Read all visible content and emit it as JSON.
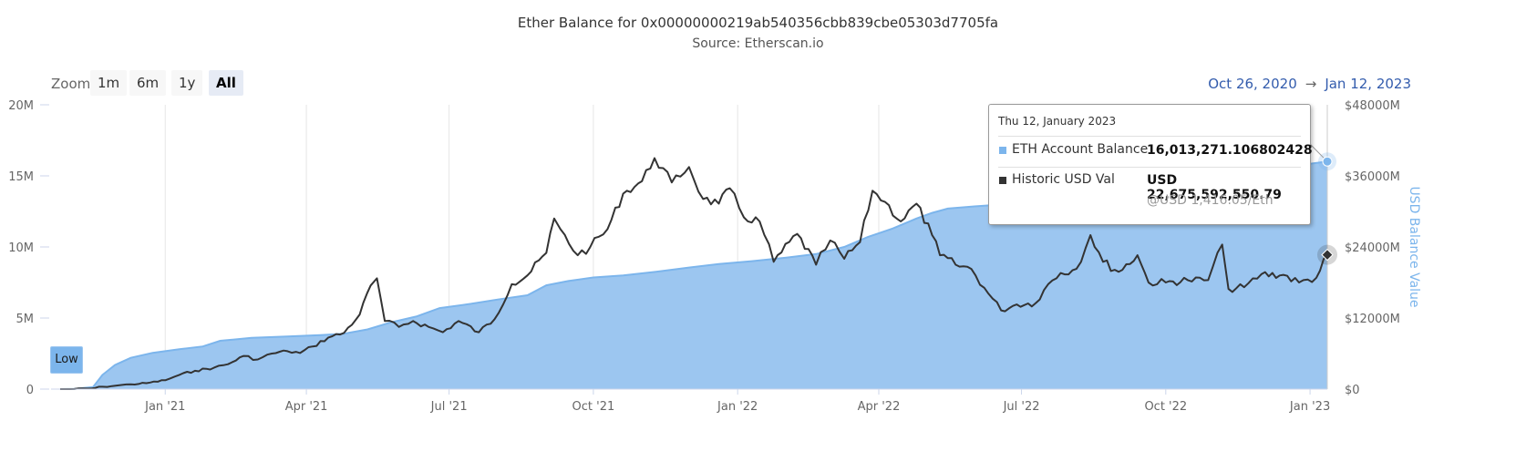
{
  "header": {
    "title": "Ether Balance for 0x00000000219ab540356cbb839cbe05303d7705fa",
    "subtitle": "Source: Etherscan.io"
  },
  "zoom": {
    "label": "Zoom",
    "buttons": [
      "1m",
      "6m",
      "1y",
      "All"
    ],
    "active": "All"
  },
  "range": {
    "from": "Oct 26, 2020",
    "arrow": "→",
    "to": "Jan 12, 2023"
  },
  "low_button": "Low",
  "tooltip": {
    "date": "Thu 12, January 2023",
    "balance_label": "ETH Account Balance",
    "balance_value": "16,013,271.106802428",
    "usd_label": "Historic USD Val",
    "usd_value": "USD 22,675,592,550.79",
    "usd_rate": "@USD 1,416.05/Eth"
  },
  "colors": {
    "balance": "#7cb5ec",
    "balance_fill": "#9cc6f0",
    "usd": "#333333"
  },
  "chart_data": {
    "type": "area",
    "title": "Ether Balance for 0x00000000219ab540356cbb839cbe05303d7705fa",
    "subtitle": "Source: Etherscan.io",
    "ylabel_right": "USD Balance Value",
    "x_tick_labels": [
      "Jan '21",
      "Apr '21",
      "Jul '21",
      "Oct '21",
      "Jan '22",
      "Apr '22",
      "Jul '22",
      "Oct '22",
      "Jan '23"
    ],
    "x_tick_dates": [
      "2021-01-01",
      "2021-04-01",
      "2021-07-01",
      "2021-10-01",
      "2022-01-01",
      "2022-04-01",
      "2022-07-01",
      "2022-10-01",
      "2023-01-01"
    ],
    "xlim": [
      "2020-10-26",
      "2023-01-12"
    ],
    "y_left_ticks": [
      "0",
      "5M",
      "10M",
      "15M",
      "20M"
    ],
    "y_left_values": [
      0,
      5000000,
      10000000,
      15000000,
      20000000
    ],
    "ylim_left": [
      0,
      20000000
    ],
    "y_right_ticks": [
      "$0",
      "$12000M",
      "$24000M",
      "$36000M",
      "$48000M"
    ],
    "y_right_values": [
      0,
      12000,
      24000,
      36000,
      48000
    ],
    "ylim_right": [
      0,
      48000
    ],
    "series": [
      {
        "name": "ETH Account Balance",
        "axis": "left",
        "type": "area",
        "points": [
          [
            "2020-10-26",
            0
          ],
          [
            "2020-11-04",
            20000
          ],
          [
            "2020-11-16",
            150000
          ],
          [
            "2020-11-22",
            1000000
          ],
          [
            "2020-11-30",
            1700000
          ],
          [
            "2020-12-10",
            2200000
          ],
          [
            "2020-12-24",
            2550000
          ],
          [
            "2021-01-10",
            2800000
          ],
          [
            "2021-01-25",
            3000000
          ],
          [
            "2021-02-05",
            3400000
          ],
          [
            "2021-02-25",
            3600000
          ],
          [
            "2021-03-20",
            3700000
          ],
          [
            "2021-04-10",
            3800000
          ],
          [
            "2021-04-25",
            3900000
          ],
          [
            "2021-05-10",
            4200000
          ],
          [
            "2021-05-25",
            4700000
          ],
          [
            "2021-06-10",
            5100000
          ],
          [
            "2021-06-25",
            5700000
          ],
          [
            "2021-07-15",
            6000000
          ],
          [
            "2021-08-01",
            6300000
          ],
          [
            "2021-08-20",
            6600000
          ],
          [
            "2021-09-01",
            7300000
          ],
          [
            "2021-09-15",
            7600000
          ],
          [
            "2021-10-01",
            7850000
          ],
          [
            "2021-10-20",
            8000000
          ],
          [
            "2021-11-10",
            8250000
          ],
          [
            "2021-12-01",
            8550000
          ],
          [
            "2021-12-20",
            8800000
          ],
          [
            "2022-01-10",
            9000000
          ],
          [
            "2022-02-01",
            9250000
          ],
          [
            "2022-02-20",
            9500000
          ],
          [
            "2022-03-10",
            10000000
          ],
          [
            "2022-03-25",
            10700000
          ],
          [
            "2022-04-10",
            11300000
          ],
          [
            "2022-04-25",
            12000000
          ],
          [
            "2022-05-05",
            12400000
          ],
          [
            "2022-05-15",
            12700000
          ],
          [
            "2022-06-01",
            12850000
          ],
          [
            "2022-06-20",
            13000000
          ],
          [
            "2022-07-10",
            13100000
          ],
          [
            "2022-08-01",
            13300000
          ],
          [
            "2022-09-01",
            13800000
          ],
          [
            "2022-10-01",
            14300000
          ],
          [
            "2022-11-01",
            14800000
          ],
          [
            "2022-12-01",
            15400000
          ],
          [
            "2023-01-12",
            16013271
          ]
        ]
      },
      {
        "name": "Historic USD Val",
        "axis": "right",
        "type": "line",
        "unit": "USD millions",
        "points": [
          [
            "2020-10-26",
            0
          ],
          [
            "2020-11-04",
            10
          ],
          [
            "2020-11-15",
            100
          ],
          [
            "2020-11-22",
            400
          ],
          [
            "2020-12-01",
            600
          ],
          [
            "2020-12-10",
            800
          ],
          [
            "2020-12-20",
            1000
          ],
          [
            "2021-01-01",
            1500
          ],
          [
            "2021-01-10",
            2400
          ],
          [
            "2021-01-20",
            3100
          ],
          [
            "2021-02-01",
            3600
          ],
          [
            "2021-02-10",
            4200
          ],
          [
            "2021-02-20",
            5600
          ],
          [
            "2021-03-01",
            5000
          ],
          [
            "2021-03-10",
            6000
          ],
          [
            "2021-03-20",
            6400
          ],
          [
            "2021-03-28",
            6100
          ],
          [
            "2021-04-05",
            7200
          ],
          [
            "2021-04-15",
            8700
          ],
          [
            "2021-04-25",
            9500
          ],
          [
            "2021-05-05",
            12600
          ],
          [
            "2021-05-12",
            17500
          ],
          [
            "2021-05-16",
            18700
          ],
          [
            "2021-05-21",
            11500
          ],
          [
            "2021-05-30",
            10500
          ],
          [
            "2021-06-08",
            11500
          ],
          [
            "2021-06-18",
            10500
          ],
          [
            "2021-06-27",
            9600
          ],
          [
            "2021-07-07",
            11500
          ],
          [
            "2021-07-20",
            9600
          ],
          [
            "2021-07-30",
            11800
          ],
          [
            "2021-08-10",
            17700
          ],
          [
            "2021-08-20",
            19200
          ],
          [
            "2021-09-01",
            23000
          ],
          [
            "2021-09-06",
            28800
          ],
          [
            "2021-09-10",
            27000
          ],
          [
            "2021-09-21",
            22600
          ],
          [
            "2021-09-29",
            24000
          ],
          [
            "2021-10-10",
            27000
          ],
          [
            "2021-10-20",
            33000
          ],
          [
            "2021-11-01",
            35100
          ],
          [
            "2021-11-09",
            39000
          ],
          [
            "2021-11-20",
            34900
          ],
          [
            "2021-12-01",
            37500
          ],
          [
            "2021-12-10",
            32100
          ],
          [
            "2021-12-20",
            31300
          ],
          [
            "2021-12-27",
            33900
          ],
          [
            "2022-01-05",
            29000
          ],
          [
            "2022-01-15",
            28300
          ],
          [
            "2022-01-24",
            21500
          ],
          [
            "2022-02-08",
            26200
          ],
          [
            "2022-02-20",
            21000
          ],
          [
            "2022-03-01",
            25100
          ],
          [
            "2022-03-10",
            22000
          ],
          [
            "2022-03-20",
            24800
          ],
          [
            "2022-03-28",
            33500
          ],
          [
            "2022-04-05",
            31600
          ],
          [
            "2022-04-15",
            28300
          ],
          [
            "2022-04-25",
            31300
          ],
          [
            "2022-05-05",
            26000
          ],
          [
            "2022-05-10",
            22600
          ],
          [
            "2022-05-20",
            21000
          ],
          [
            "2022-05-30",
            20300
          ],
          [
            "2022-06-10",
            16100
          ],
          [
            "2022-06-18",
            13300
          ],
          [
            "2022-06-28",
            14300
          ],
          [
            "2022-07-10",
            14500
          ],
          [
            "2022-07-18",
            17700
          ],
          [
            "2022-07-26",
            19600
          ],
          [
            "2022-08-05",
            20300
          ],
          [
            "2022-08-14",
            26000
          ],
          [
            "2022-08-22",
            21500
          ],
          [
            "2022-09-01",
            19800
          ],
          [
            "2022-09-13",
            22600
          ],
          [
            "2022-09-20",
            18000
          ],
          [
            "2022-10-01",
            18000
          ],
          [
            "2022-10-15",
            18400
          ],
          [
            "2022-10-28",
            18400
          ],
          [
            "2022-11-06",
            24400
          ],
          [
            "2022-11-10",
            16900
          ],
          [
            "2022-11-20",
            17200
          ],
          [
            "2022-12-01",
            19400
          ],
          [
            "2022-12-15",
            19300
          ],
          [
            "2022-12-25",
            18000
          ],
          [
            "2023-01-05",
            18800
          ],
          [
            "2023-01-12",
            22676
          ]
        ]
      }
    ],
    "legend": "none",
    "grid": "vertical-lines"
  }
}
